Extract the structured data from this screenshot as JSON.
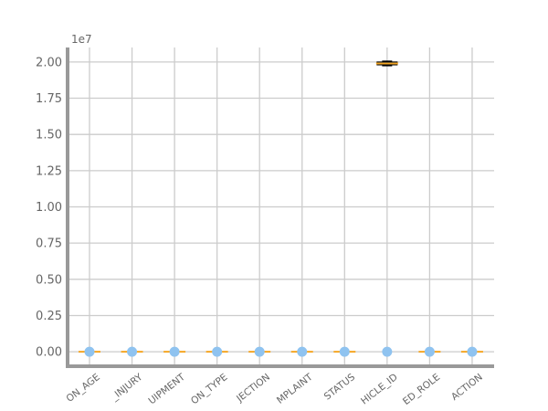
{
  "chart_data": {
    "type": "box",
    "title": "",
    "xlabel": "",
    "ylabel": "",
    "y_scale_label": "1e7",
    "ylim": [
      -0.1,
      2.1
    ],
    "y_ticks": [
      "0.00",
      "0.25",
      "0.50",
      "0.75",
      "1.00",
      "1.25",
      "1.50",
      "1.75",
      "2.00"
    ],
    "grid": true,
    "categories": [
      "ON_AGE",
      "_INJURY",
      "UIPMENT",
      "ON_TYPE",
      "JECTION",
      "MPLAINT",
      "STATUS",
      "HICLE_ID",
      "ED_ROLE",
      "ACTION"
    ],
    "boxes": [
      {
        "median": 0,
        "q1": 0,
        "q3": 0,
        "whisker_low": 0,
        "whisker_high": 0
      },
      {
        "median": 0,
        "q1": 0,
        "q3": 0,
        "whisker_low": 0,
        "whisker_high": 0
      },
      {
        "median": 0,
        "q1": 0,
        "q3": 0,
        "whisker_low": 0,
        "whisker_high": 0
      },
      {
        "median": 0,
        "q1": 0,
        "q3": 0,
        "whisker_low": 0,
        "whisker_high": 0
      },
      {
        "median": 0,
        "q1": 0,
        "q3": 0,
        "whisker_low": 0,
        "whisker_high": 0
      },
      {
        "median": 0,
        "q1": 0,
        "q3": 0,
        "whisker_low": 0,
        "whisker_high": 0
      },
      {
        "median": 0,
        "q1": 0,
        "q3": 0,
        "whisker_low": 0,
        "whisker_high": 0
      },
      {
        "median": 1.99,
        "q1": 1.98,
        "q3": 2.0,
        "whisker_low": 1.975,
        "whisker_high": 2.005
      },
      {
        "median": 0,
        "q1": 0,
        "q3": 0,
        "whisker_low": 0,
        "whisker_high": 0
      },
      {
        "median": 0,
        "q1": 0,
        "q3": 0,
        "whisker_low": 0,
        "whisker_high": 0
      }
    ],
    "points": [
      {
        "category": "ON_AGE",
        "y": 0
      },
      {
        "category": "_INJURY",
        "y": 0
      },
      {
        "category": "UIPMENT",
        "y": 0
      },
      {
        "category": "ON_TYPE",
        "y": 0
      },
      {
        "category": "JECTION",
        "y": 0
      },
      {
        "category": "MPLAINT",
        "y": 0
      },
      {
        "category": "STATUS",
        "y": 0
      },
      {
        "category": "HICLE_ID",
        "y": 0
      },
      {
        "category": "ED_ROLE",
        "y": 0
      },
      {
        "category": "ACTION",
        "y": 0
      }
    ],
    "colors": {
      "grid": "#cccccc",
      "axis": "#999999",
      "median": "#f5a623",
      "box": "#1f5fa0",
      "point": "#8fc3f0"
    }
  }
}
